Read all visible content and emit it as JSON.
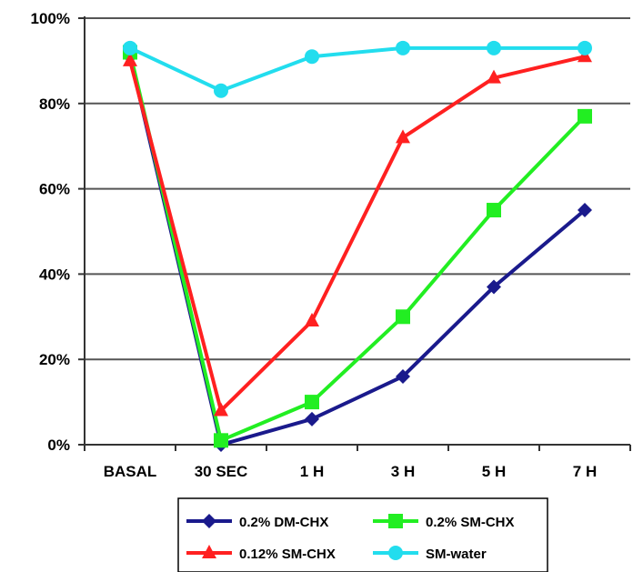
{
  "chart_data": {
    "type": "line",
    "title": "",
    "xlabel": "",
    "ylabel": "",
    "categories": [
      "BASAL",
      "30 SEC",
      "1 H",
      "3 H",
      "5 H",
      "7 H"
    ],
    "y_tick_labels": [
      "0%",
      "20%",
      "40%",
      "60%",
      "80%",
      "100%"
    ],
    "ylim": [
      0,
      100
    ],
    "y_unit": "%",
    "grid": "horizontal",
    "legend_position": "bottom",
    "series": [
      {
        "name": "0.2% DM-CHX",
        "color": "#1a1a8c",
        "marker": "diamond",
        "values": [
          91,
          0,
          6,
          16,
          37,
          55
        ]
      },
      {
        "name": "0.2% SM-CHX",
        "color": "#22ee22",
        "marker": "square",
        "values": [
          92,
          1,
          10,
          30,
          55,
          77
        ]
      },
      {
        "name": "0.12% SM-CHX",
        "color": "#ff2020",
        "marker": "triangle",
        "values": [
          90,
          8,
          29,
          72,
          86,
          91
        ]
      },
      {
        "name": "SM-water",
        "color": "#22ddee",
        "marker": "circle",
        "values": [
          93,
          83,
          91,
          93,
          93,
          93
        ]
      }
    ]
  }
}
